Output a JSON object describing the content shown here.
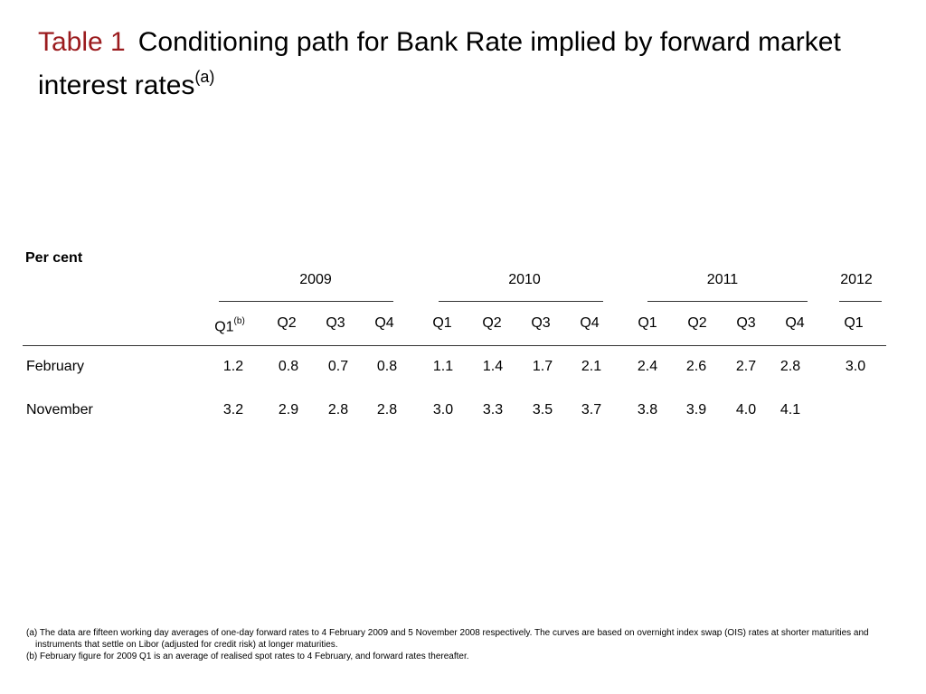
{
  "title": {
    "label": "Table 1",
    "text": "Conditioning path for Bank Rate implied by forward market interest rates",
    "sup": "(a)"
  },
  "units": "Per cent",
  "years": [
    "2009",
    "2010",
    "2011",
    "2012"
  ],
  "quarters": [
    "Q1",
    "Q2",
    "Q3",
    "Q4",
    "Q1",
    "Q2",
    "Q3",
    "Q4",
    "Q1",
    "Q2",
    "Q3",
    "Q4",
    "Q1"
  ],
  "first_quarter_sup": "(b)",
  "rows": [
    {
      "label": "February",
      "values": [
        "1.2",
        "0.8",
        "0.7",
        "0.8",
        "1.1",
        "1.4",
        "1.7",
        "2.1",
        "2.4",
        "2.6",
        "2.7",
        "2.8",
        "3.0"
      ]
    },
    {
      "label": "November",
      "values": [
        "3.2",
        "2.9",
        "2.8",
        "2.8",
        "3.0",
        "3.3",
        "3.5",
        "3.7",
        "3.8",
        "3.9",
        "4.0",
        "4.1",
        ""
      ]
    }
  ],
  "footnotes": [
    "(a) The data are fifteen working day averages of one-day forward rates to 4 February 2009 and 5 November 2008 respectively.  The curves are based on overnight index swap (OIS) rates at shorter maturities and instruments that settle on Libor (adjusted for credit risk) at longer maturities.",
    "(b) February figure for 2009 Q1 is an average of realised spot rates to 4 February, and forward rates thereafter."
  ]
}
